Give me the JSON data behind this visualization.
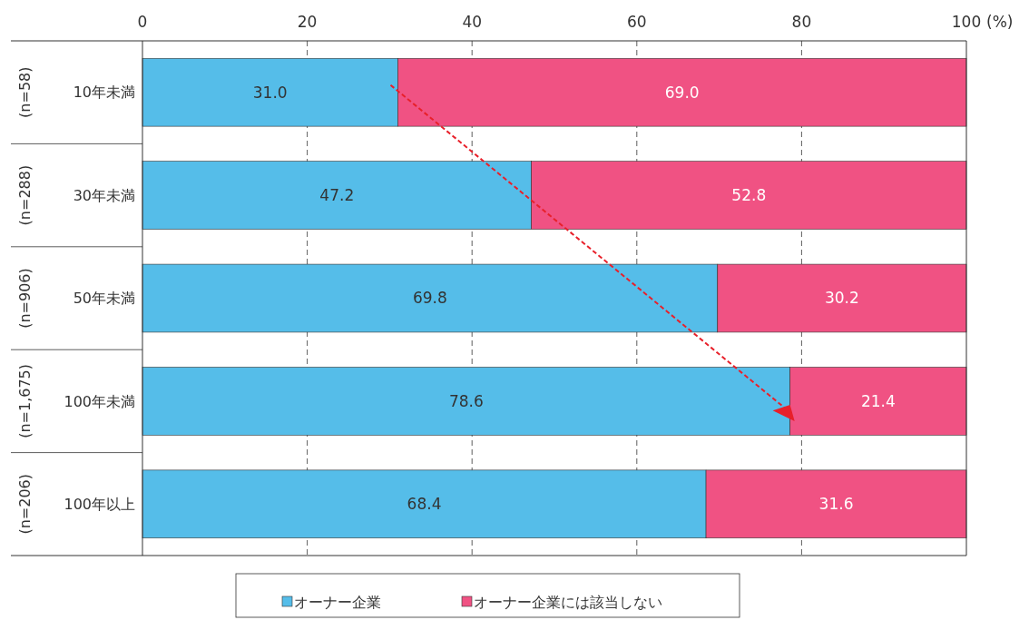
{
  "chart_data": {
    "type": "bar",
    "orientation": "horizontal",
    "stacked": true,
    "categories": [
      "10年未満",
      "30年未満",
      "50年未満",
      "100年未満",
      "100年以上"
    ],
    "series": [
      {
        "name": "オーナー企業",
        "color": "#55bde9",
        "values": [
          31.0,
          47.2,
          69.8,
          78.6,
          68.4
        ],
        "value_labels": [
          "31.0",
          "47.2",
          "69.8",
          "78.6",
          "68.4"
        ]
      },
      {
        "name": "オーナー企業には該当しない",
        "color": "#f05283",
        "values": [
          69.0,
          52.8,
          30.2,
          21.4,
          31.6
        ],
        "value_labels": [
          "69.0",
          "52.8",
          "30.2",
          "21.4",
          "31.6"
        ]
      }
    ],
    "xlim": [
      0,
      100
    ],
    "xticks": [
      0,
      20,
      40,
      60,
      80,
      100
    ],
    "xlabel": "(%)",
    "annotations": [
      "(n=58)",
      "(n=288)",
      "(n=906)",
      "(n=1,675)",
      "(n=206)"
    ],
    "grid": "x",
    "legend": "bottom"
  }
}
